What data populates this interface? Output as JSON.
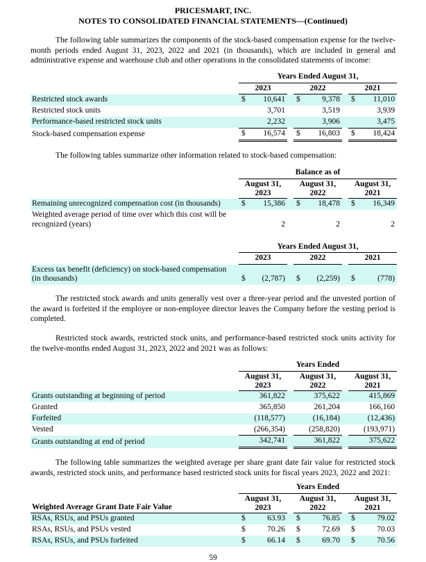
{
  "sym": {
    "dollar": "$"
  },
  "colors": {
    "row_highlight": "#d3f8f4",
    "text": "#000000",
    "background": "#ffffff"
  },
  "header": {
    "company": "PRICESMART, INC.",
    "subtitle": "NOTES TO CONSOLIDATED FINANCIAL STATEMENTS—(Continued)"
  },
  "paragraphs": {
    "p1": "The following table summarizes the components of the stock-based compensation expense for the twelve-month periods ended August 31, 2023, 2022 and 2021 (in thousands), which are included in general and administrative expense and warehouse club and other operations in the consolidated statements of income:",
    "p2": "The following tables summarize other information related to stock-based compensation:",
    "p3": "The restricted stock awards and units generally vest over a three-year period and the unvested portion of the award is forfeited if the employee or non-employee director leaves the Company before the vesting period is completed.",
    "p4": "Restricted stock awards, restricted stock units, and performance-based restricted stock units activity for the twelve-months ended August 31, 2023, 2022 and 2021 was as follows:",
    "p5": "The following table summarizes the weighted average per share grant date fair value for restricted stock awards, restricted stock units, and performance based restricted stock units for fiscal years 2023, 2022 and 2021:"
  },
  "table1": {
    "group_header": "Years Ended August 31,",
    "col_headers": [
      "2023",
      "2022",
      "2021"
    ],
    "rows": [
      {
        "label": "Restricted stock awards",
        "values": [
          "10,641",
          "9,378",
          "11,010"
        ]
      },
      {
        "label": "Restricted stock units",
        "values": [
          "3,701",
          "3,519",
          "3,939"
        ]
      },
      {
        "label": "Performance-based restricted stock units",
        "values": [
          "2,232",
          "3,906",
          "3,475"
        ]
      },
      {
        "label": "Stock-based compensation expense",
        "values": [
          "16,574",
          "16,803",
          "18,424"
        ]
      }
    ]
  },
  "table2": {
    "group_header": "Balance as of",
    "col_headers": [
      {
        "l1": "August 31,",
        "l2": "2023"
      },
      {
        "l1": "August 31,",
        "l2": "2022"
      },
      {
        "l1": "August 31,",
        "l2": "2021"
      }
    ],
    "rows": [
      {
        "label": "Remaining unrecognized compensation cost (in thousands)",
        "values": [
          "15,386",
          "18,478",
          "16,349"
        ]
      },
      {
        "label": "Weighted average period of time over which this cost will be recognized (years)",
        "values": [
          "2",
          "2",
          "2"
        ]
      }
    ]
  },
  "table3": {
    "group_header": "Years Ended August 31,",
    "col_headers": [
      "2023",
      "2022",
      "2021"
    ],
    "rows": [
      {
        "label": "Excess tax benefit (deficiency) on stock-based compensation (in thousands)",
        "values": [
          "(2,787)",
          "(2,259)",
          "(778)"
        ]
      }
    ]
  },
  "table4": {
    "group_header": "Years Ended",
    "col_headers": [
      {
        "l1": "August 31,",
        "l2": "2023"
      },
      {
        "l1": "August 31,",
        "l2": "2022"
      },
      {
        "l1": "August 31,",
        "l2": "2021"
      }
    ],
    "rows": [
      {
        "label": "Grants outstanding at beginning of period",
        "values": [
          "361,822",
          "375,622",
          "415,869"
        ]
      },
      {
        "label": "Granted",
        "values": [
          "365,850",
          "261,204",
          "166,160"
        ]
      },
      {
        "label": "Forfeited",
        "values": [
          "(118,577)",
          "(16,184)",
          "(12,436)"
        ]
      },
      {
        "label": "Vested",
        "values": [
          "(266,354)",
          "(258,820)",
          "(193,971)"
        ]
      },
      {
        "label": "Grants outstanding at end of period",
        "values": [
          "342,741",
          "361,822",
          "375,622"
        ]
      }
    ]
  },
  "table5": {
    "group_header": "Years Ended",
    "label_header": "Weighted Average Grant Date Fair Value",
    "col_headers": [
      {
        "l1": "August 31,",
        "l2": "2023"
      },
      {
        "l1": "August 31,",
        "l2": "2022"
      },
      {
        "l1": "August 31,",
        "l2": "2021"
      }
    ],
    "rows": [
      {
        "label": "RSAs, RSUs, and PSUs granted",
        "values": [
          "63.93",
          "76.85",
          "79.02"
        ]
      },
      {
        "label": "RSAs, RSUs, and PSUs vested",
        "values": [
          "70.26",
          "72.69",
          "70.03"
        ]
      },
      {
        "label": "RSAs, RSUs, and PSUs forfeited",
        "values": [
          "66.14",
          "69.70",
          "70.56"
        ]
      }
    ]
  },
  "footer": {
    "page_number": "59"
  }
}
